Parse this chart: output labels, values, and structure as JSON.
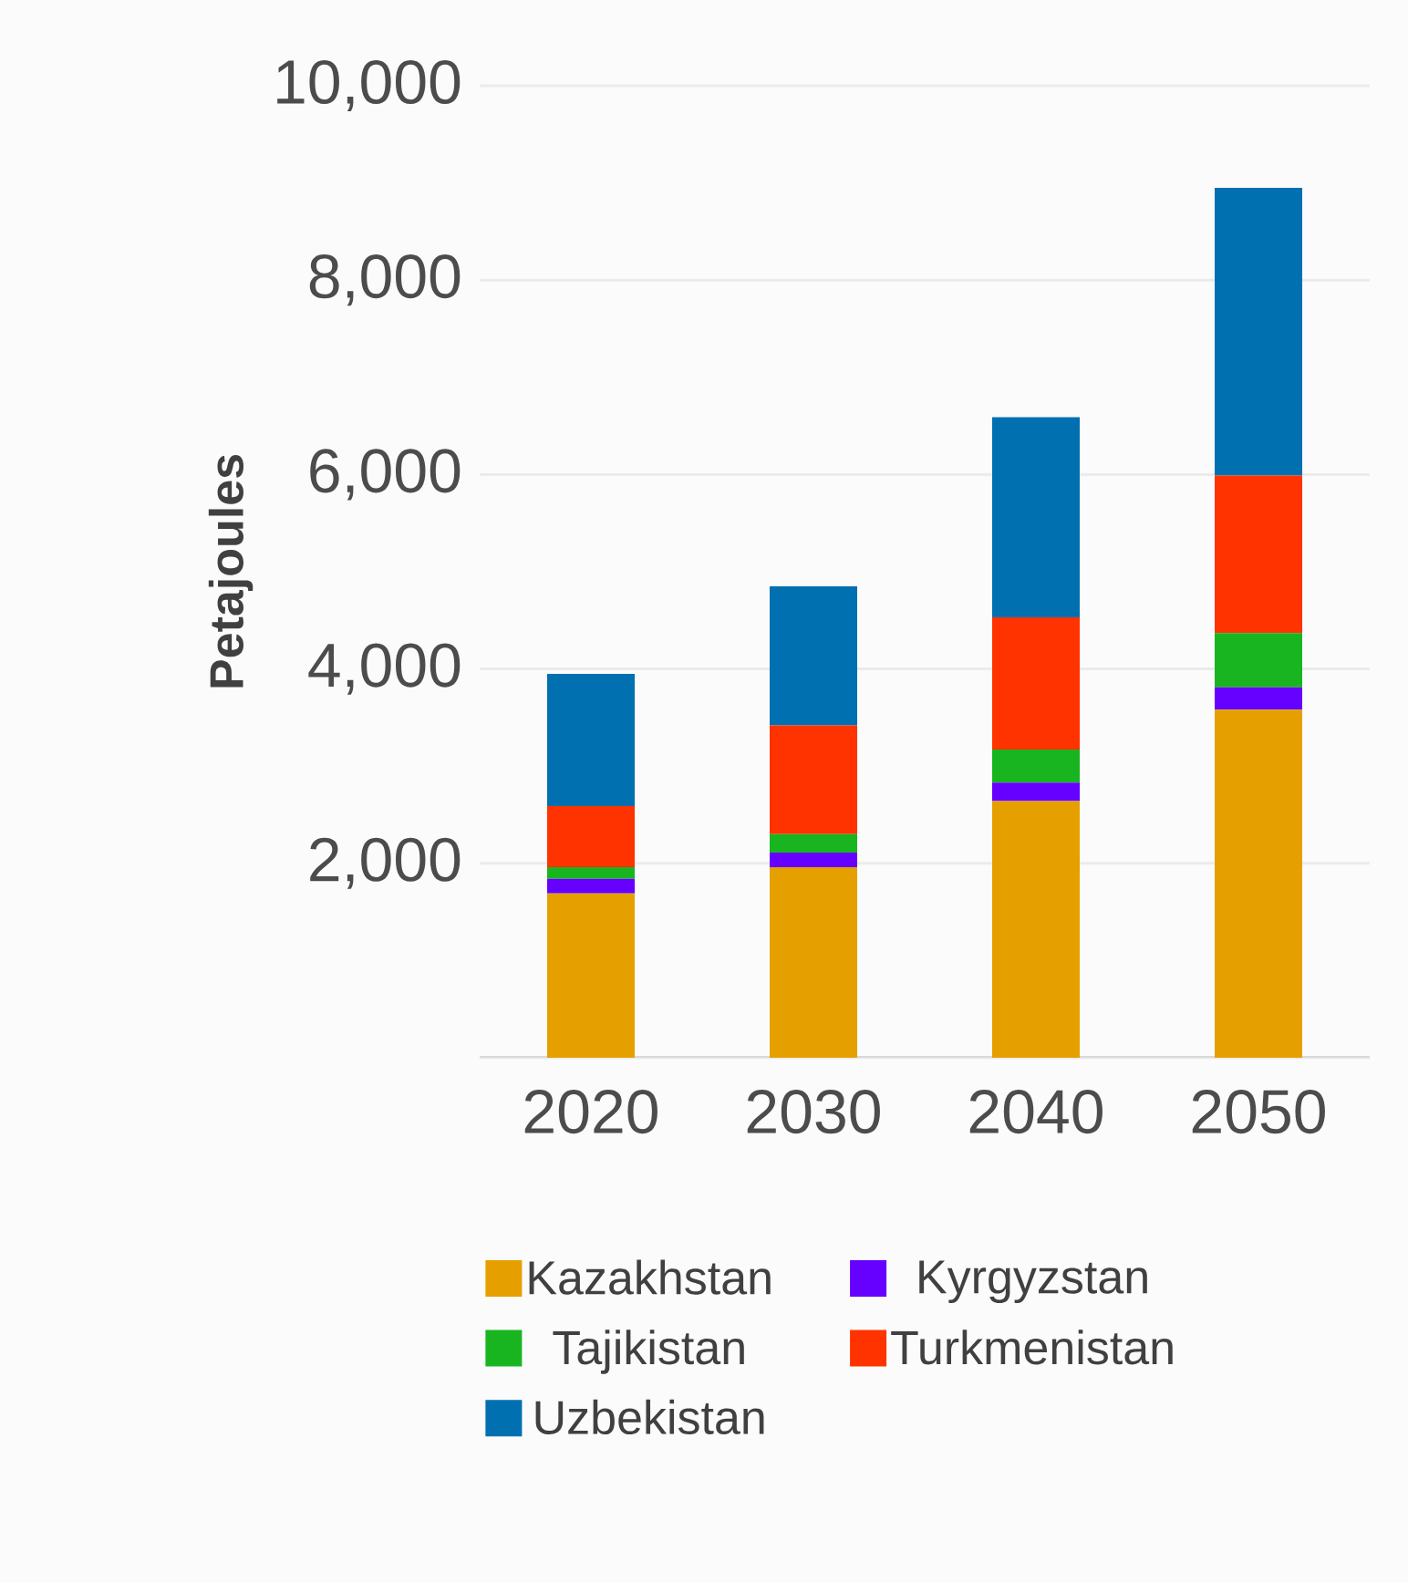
{
  "chart_data": {
    "type": "bar",
    "stacked": true,
    "ylabel": "Petajoules",
    "categories": [
      "2020",
      "2030",
      "2040",
      "2050"
    ],
    "series": [
      {
        "name": "Kazakhstan",
        "color": "#e5a000",
        "values": [
          1690,
          1960,
          2640,
          3580
        ]
      },
      {
        "name": "Kyrgyzstan",
        "color": "#6600ff",
        "values": [
          150,
          150,
          190,
          230
        ]
      },
      {
        "name": "Tajikistan",
        "color": "#18b520",
        "values": [
          120,
          190,
          340,
          560
        ]
      },
      {
        "name": "Turkmenistan",
        "color": "#ff3300",
        "values": [
          630,
          1120,
          1360,
          1620
        ]
      },
      {
        "name": "Uzbekistan",
        "color": "#0070b0",
        "values": [
          1360,
          1430,
          2060,
          2960
        ]
      }
    ],
    "ylim": [
      0,
      10000
    ],
    "yticks": [
      {
        "value": 0,
        "label": null
      },
      {
        "value": 2000,
        "label": "2,000"
      },
      {
        "value": 4000,
        "label": "4,000"
      },
      {
        "value": 6000,
        "label": "6,000"
      },
      {
        "value": 8000,
        "label": "8,000"
      },
      {
        "value": 10000,
        "label": "10,000"
      }
    ],
    "grid": "y",
    "legend": "bottom"
  }
}
